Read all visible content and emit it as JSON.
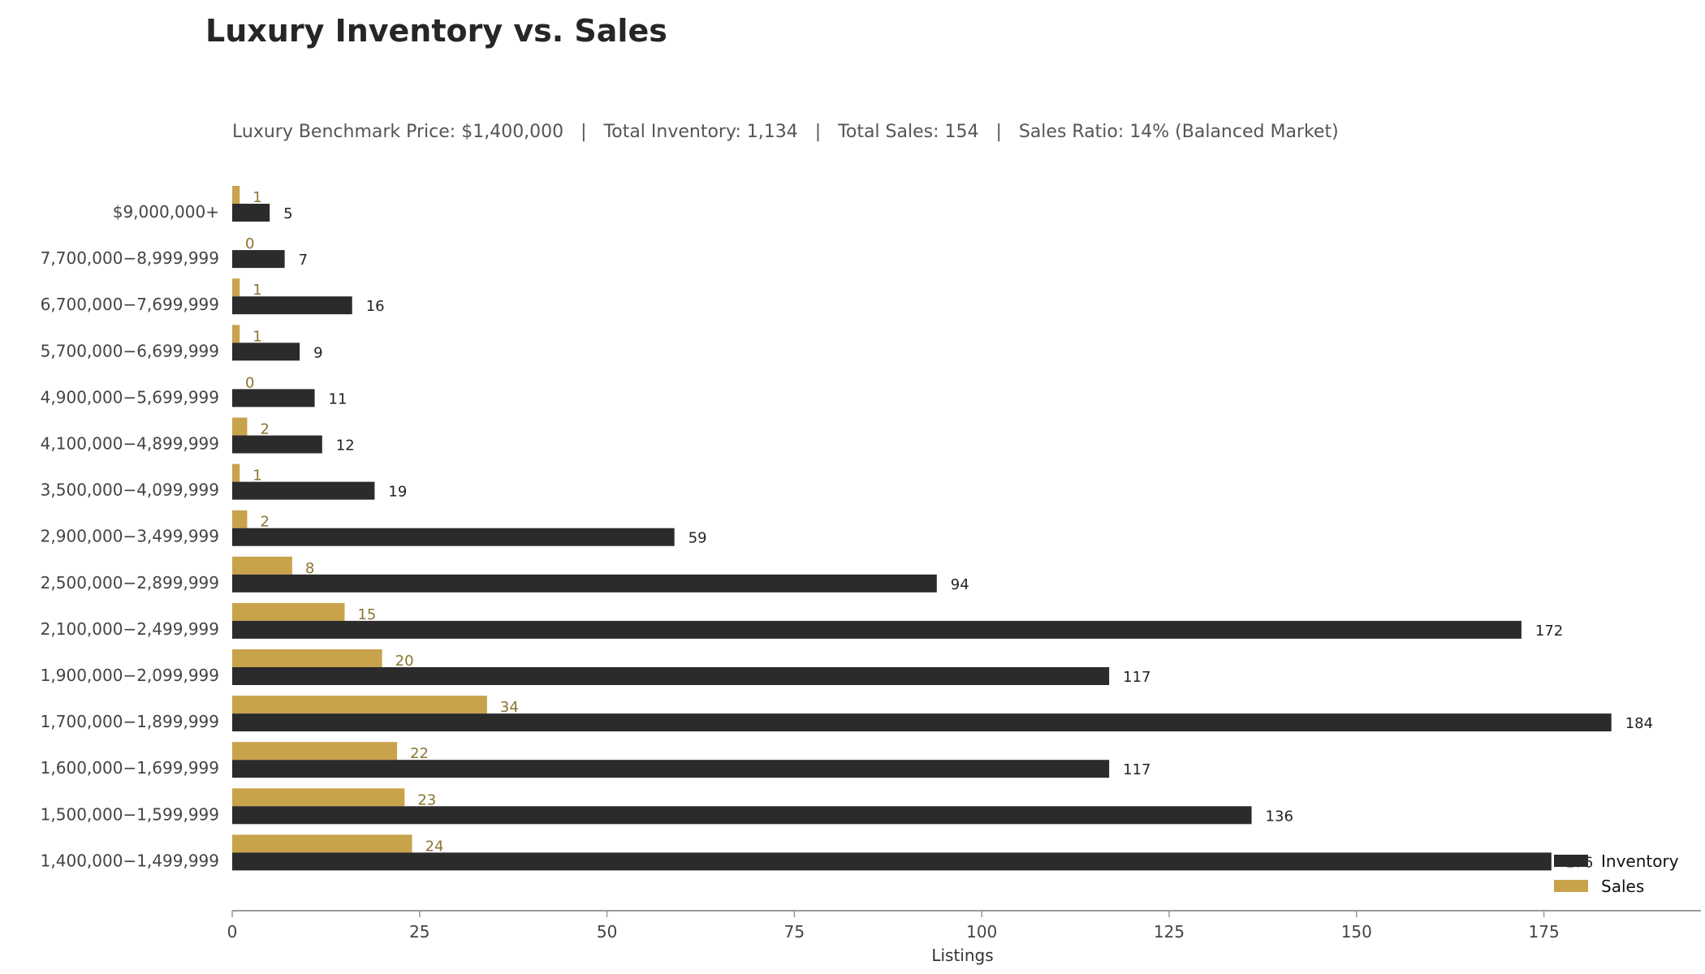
{
  "chart_data": {
    "type": "bar",
    "orientation": "horizontal",
    "title": "Luxury Inventory vs. Sales",
    "subtitle": "Luxury Benchmark Price: $1,400,000   |   Total Inventory: 1,134   |   Total Sales: 154   |   Sales Ratio: 14% (Balanced Market)",
    "xlabel": "Listings",
    "ylabel": "",
    "xlim": [
      0,
      193
    ],
    "xticks": [
      0,
      25,
      50,
      75,
      100,
      125,
      150,
      175
    ],
    "grid": false,
    "legend_position": "bottom-right",
    "categories": [
      "$9,000,000+",
      "7,700,000−8,999,999",
      "6,700,000−7,699,999",
      "5,700,000−6,699,999",
      "4,900,000−5,699,999",
      "4,100,000−4,899,999",
      "3,500,000−4,099,999",
      "2,900,000−3,499,999",
      "2,500,000−2,899,999",
      "2,100,000−2,499,999",
      "1,900,000−2,099,999",
      "1,700,000−1,899,999",
      "1,600,000−1,699,999",
      "1,500,000−1,599,999",
      "1,400,000−1,499,999"
    ],
    "series": [
      {
        "name": "Inventory",
        "color": "#2b2b2b",
        "values": [
          5,
          7,
          16,
          9,
          11,
          12,
          19,
          59,
          94,
          172,
          117,
          184,
          117,
          136,
          176
        ]
      },
      {
        "name": "Sales",
        "color": "#c9a24c",
        "values": [
          1,
          0,
          1,
          1,
          0,
          2,
          1,
          2,
          8,
          15,
          20,
          34,
          22,
          23,
          24
        ]
      }
    ]
  }
}
